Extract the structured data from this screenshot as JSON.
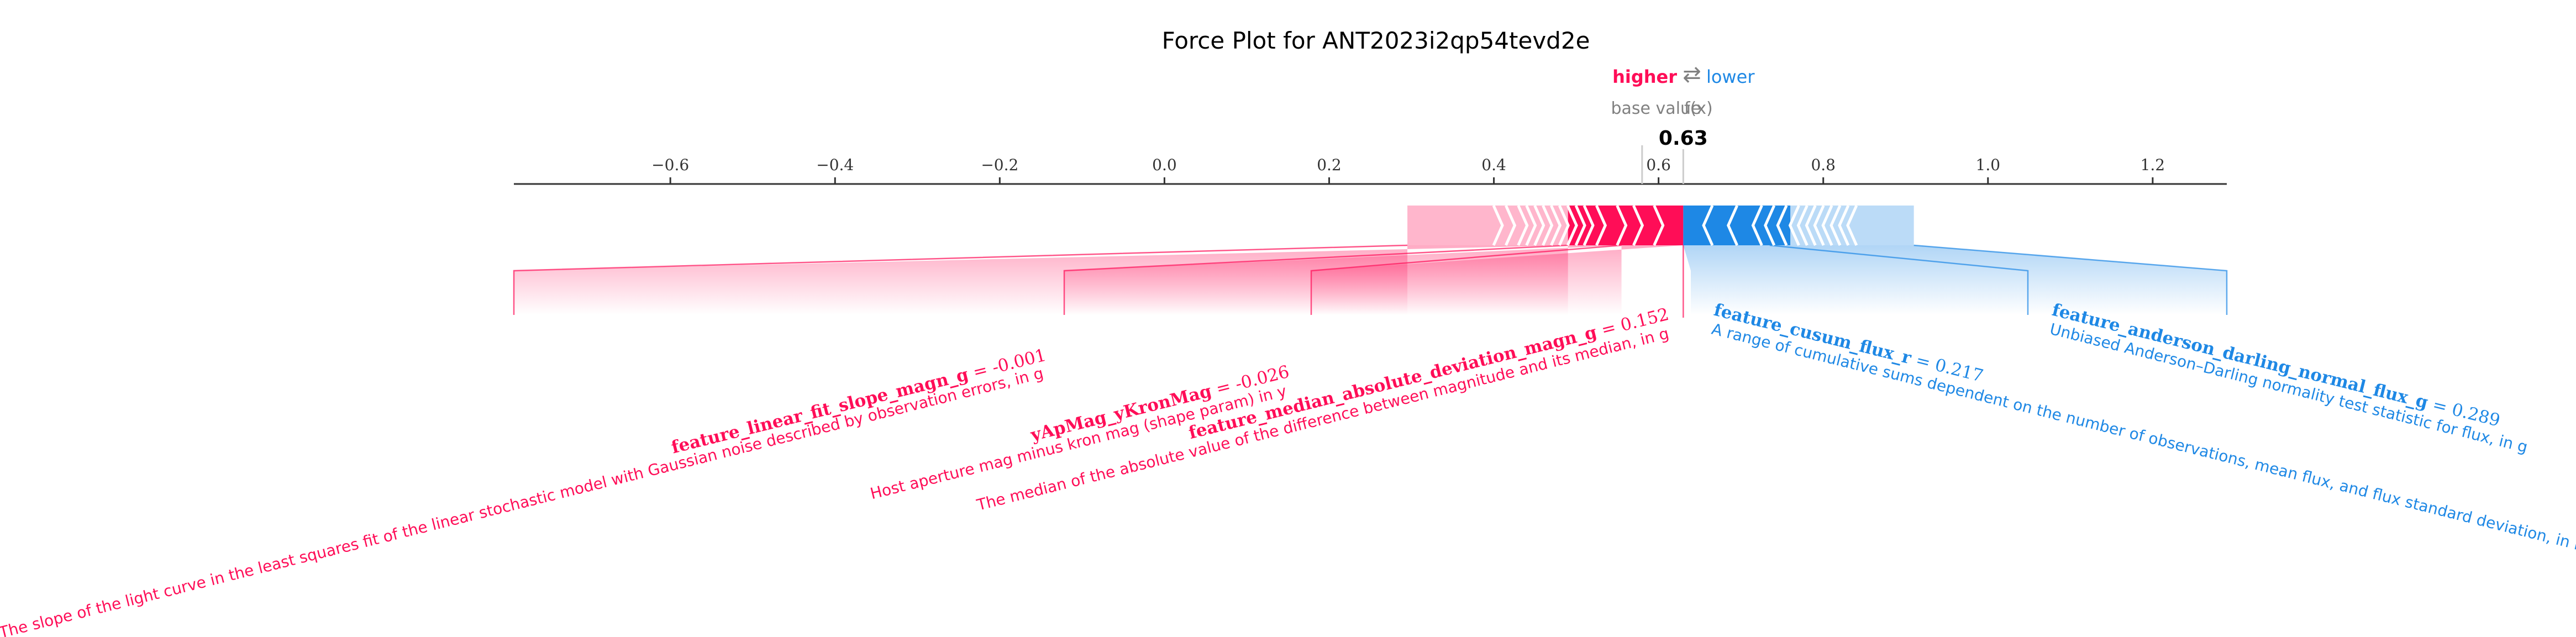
{
  "chart_data": {
    "type": "force",
    "title": "Force Plot for ANT2023i2qp54tevd2e",
    "legend": {
      "higher": "higher",
      "arrow": "⇄",
      "lower": "lower"
    },
    "base_value_label": "base value",
    "output_label": "f(x)",
    "output_value": 0.63,
    "output_value_text": "0.63",
    "xlim": [
      -0.79,
      1.29
    ],
    "ticks": [
      -0.6,
      -0.4,
      -0.2,
      0.0,
      0.2,
      0.4,
      0.6,
      0.8,
      1.0,
      1.2
    ],
    "tick_labels": [
      "−0.6",
      "−0.4",
      "−0.2",
      "0.0",
      "0.2",
      "0.4",
      "0.6",
      "0.8",
      "1.0",
      "1.2"
    ],
    "base_value": 0.58,
    "positive_extent": [
      0.295,
      0.63
    ],
    "negative_extent": [
      0.63,
      0.91
    ],
    "colors": {
      "positive": "#ff0d57",
      "negative": "#1e88e5",
      "base_text": "#808080"
    },
    "features": [
      {
        "name": "feature_linear_fit_slope_magn_g",
        "value_text": "= -0.001",
        "description": "The slope of the light curve in the least squares fit of the linear stochastic model with Gaussian noise described by observation errors, in g",
        "direction": "higher"
      },
      {
        "name": "yApMag_yKronMag",
        "value_text": "= -0.026",
        "description": "Host aperture mag minus kron mag (shape param) in y",
        "direction": "higher"
      },
      {
        "name": "feature_median_absolute_deviation_magn_g",
        "value_text": "= 0.152",
        "description": "The median of the absolute value of the difference between magnitude and its median, in g",
        "direction": "higher"
      },
      {
        "name": "feature_cusum_flux_r",
        "value_text": "= 0.217",
        "description": "A range of cumulative sums dependent on the number of observations, mean flux, and flux standard deviation, in r",
        "direction": "lower"
      },
      {
        "name": "feature_anderson_darling_normal_flux_g",
        "value_text": "= 0.289",
        "description": "Unbiased Anderson–Darling normality test statistic for flux, in g",
        "direction": "lower"
      }
    ]
  }
}
